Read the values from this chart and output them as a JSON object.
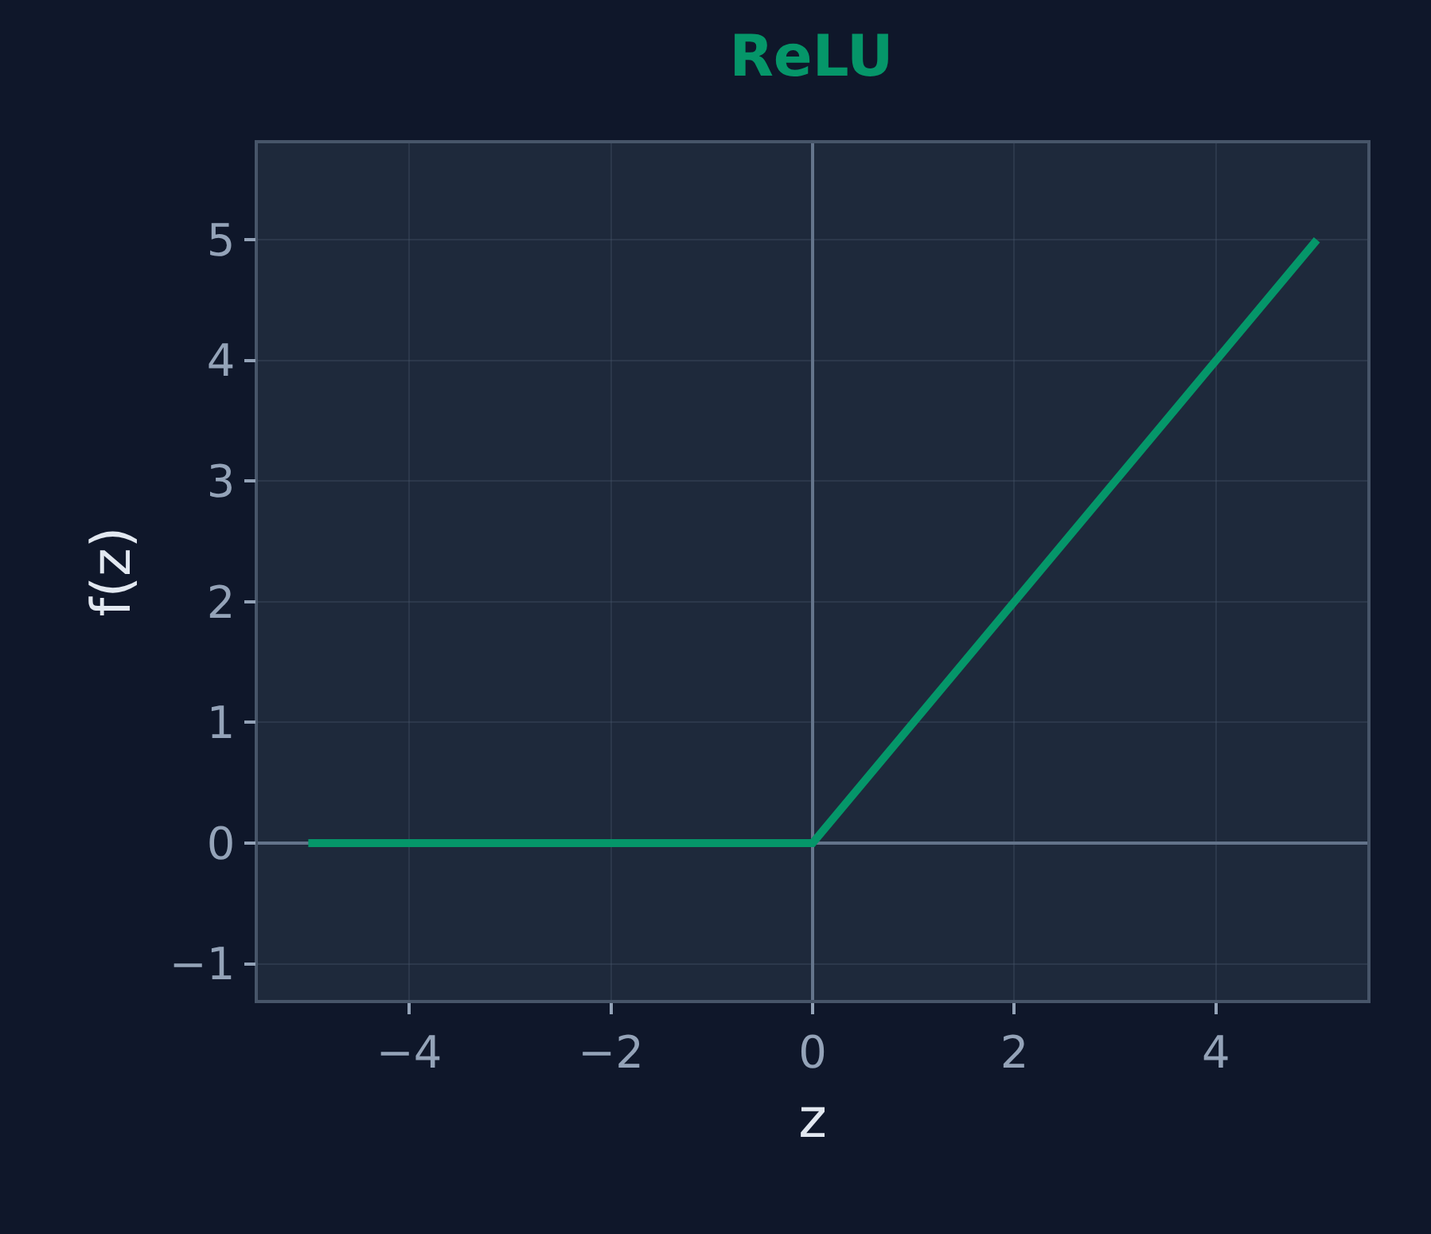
{
  "chart_data": {
    "type": "line",
    "title": "ReLU",
    "xlabel": "z",
    "ylabel": "f(z)",
    "x": [
      -5,
      0,
      5
    ],
    "series": [
      {
        "color": "#059669",
        "values": [
          0,
          0,
          5
        ]
      }
    ],
    "xlim": [
      -5.5,
      5.5
    ],
    "xticks": [
      {
        "value": -4,
        "label": "−4"
      },
      {
        "value": -2,
        "label": "−2"
      },
      0,
      2,
      4
    ],
    "ylim": [
      -1.3,
      5.8
    ],
    "yticks": [
      {
        "value": -1,
        "label": "−1"
      },
      0,
      1,
      2,
      3,
      4,
      5
    ],
    "grid": true,
    "marker": "none",
    "line_style": "solid"
  }
}
